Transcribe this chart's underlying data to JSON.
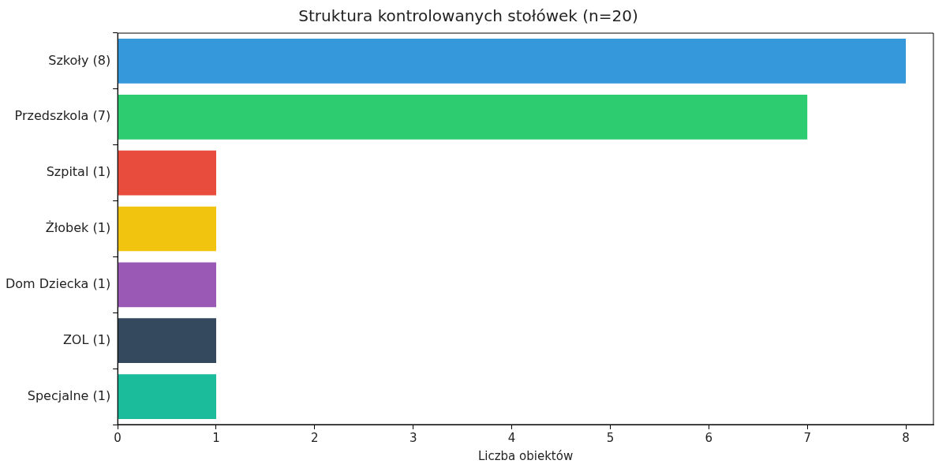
{
  "chart_data": {
    "type": "bar",
    "orientation": "horizontal",
    "title": "Struktura kontrolowanych stołówek (n=20)",
    "xlabel": "Liczba obiektów",
    "categories": [
      "Szkoły (8)",
      "Przedszkola (7)",
      "Szpital (1)",
      "Żłobek (1)",
      "Dom Dziecka (1)",
      "ZOL (1)",
      "Specjalne (1)"
    ],
    "values": [
      8,
      7,
      1,
      1,
      1,
      1,
      1
    ],
    "colors": [
      "#3498db",
      "#2ecc71",
      "#e74c3c",
      "#f1c40f",
      "#9b59b6",
      "#34495e",
      "#1abc9c"
    ],
    "xlim": [
      0,
      8.28
    ],
    "xticks": [
      0,
      1,
      2,
      3,
      4,
      5,
      6,
      7,
      8
    ],
    "grid": false,
    "legend": false
  }
}
